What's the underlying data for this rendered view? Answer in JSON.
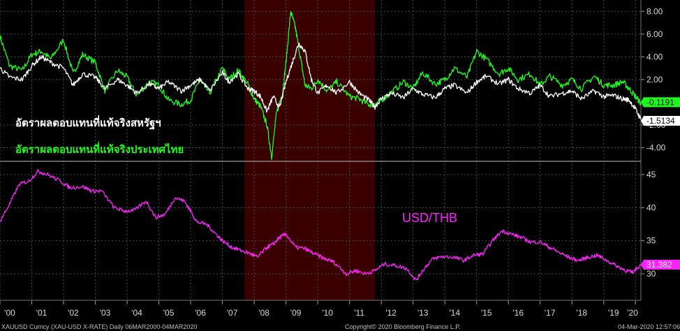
{
  "chart_data": [
    {
      "type": "line",
      "panel": "real-yields",
      "ylim": [
        -5.2,
        9.0
      ],
      "y_ticks": [
        "8.00",
        "6.00",
        "4.00",
        "2.00",
        "-2.00",
        "-4.00"
      ],
      "y_tick_values": [
        8,
        6,
        4,
        2,
        -2,
        -4
      ],
      "annotations": [
        "อัตราผลตอบแทนที่แท้จริงสหรัฐฯ",
        "อัตราผลตอบแทนที่แท้จริงประเทศไทย"
      ],
      "series": [
        {
          "key": "us",
          "color": "#ffffff",
          "last_label": "-1.5134",
          "x": [
            2000.0,
            2000.3,
            2000.7,
            2001.0,
            2001.3,
            2001.6,
            2002.0,
            2002.3,
            2002.6,
            2003.0,
            2003.3,
            2003.7,
            2004.0,
            2004.3,
            2004.7,
            2005.0,
            2005.3,
            2005.7,
            2006.0,
            2006.3,
            2006.6,
            2007.0,
            2007.2,
            2007.5,
            2007.8,
            2008.0,
            2008.2,
            2008.4,
            2008.6,
            2008.8,
            2009.0,
            2009.2,
            2009.4,
            2009.6,
            2009.8,
            2010.0,
            2010.3,
            2010.6,
            2011.0,
            2011.3,
            2011.6,
            2011.8,
            2012.0,
            2012.3,
            2012.7,
            2013.0,
            2013.3,
            2013.7,
            2014.0,
            2014.3,
            2014.7,
            2015.0,
            2015.3,
            2015.7,
            2016.0,
            2016.3,
            2016.7,
            2017.0,
            2017.3,
            2017.7,
            2018.0,
            2018.3,
            2018.7,
            2019.0,
            2019.3,
            2019.6,
            2019.8,
            2020.0,
            2020.17
          ],
          "y": [
            3.0,
            2.2,
            2.0,
            3.2,
            4.0,
            3.5,
            3.0,
            1.5,
            2.5,
            2.2,
            1.2,
            2.0,
            1.5,
            0.8,
            1.6,
            1.2,
            1.8,
            1.0,
            1.5,
            2.0,
            1.0,
            2.6,
            1.8,
            2.5,
            1.2,
            1.0,
            0.5,
            -0.8,
            0.5,
            -0.5,
            1.8,
            3.5,
            5.2,
            4.5,
            2.0,
            0.8,
            1.5,
            0.8,
            1.8,
            0.8,
            0.2,
            -0.4,
            0.3,
            0.8,
            0.4,
            1.2,
            0.7,
            0.4,
            1.2,
            1.5,
            0.8,
            1.8,
            2.3,
            1.6,
            2.0,
            1.2,
            0.8,
            1.5,
            0.5,
            0.8,
            1.0,
            0.3,
            1.0,
            0.5,
            0.6,
            0.3,
            0.2,
            -0.6,
            -1.51
          ]
        },
        {
          "key": "thai",
          "color": "#1aff1a",
          "last_label": "-0.1191",
          "x": [
            2000.0,
            2000.3,
            2000.7,
            2001.0,
            2001.3,
            2001.6,
            2002.0,
            2002.3,
            2002.6,
            2003.0,
            2003.3,
            2003.7,
            2004.0,
            2004.3,
            2004.7,
            2005.0,
            2005.3,
            2005.7,
            2006.0,
            2006.3,
            2006.6,
            2007.0,
            2007.2,
            2007.5,
            2007.8,
            2008.0,
            2008.2,
            2008.4,
            2008.55,
            2008.7,
            2008.9,
            2009.0,
            2009.15,
            2009.3,
            2009.45,
            2009.6,
            2009.8,
            2010.0,
            2010.3,
            2010.6,
            2011.0,
            2011.3,
            2011.6,
            2011.8,
            2012.0,
            2012.3,
            2012.7,
            2013.0,
            2013.3,
            2013.7,
            2014.0,
            2014.3,
            2014.7,
            2015.0,
            2015.3,
            2015.7,
            2016.0,
            2016.3,
            2016.7,
            2017.0,
            2017.3,
            2017.7,
            2018.0,
            2018.3,
            2018.7,
            2019.0,
            2019.3,
            2019.6,
            2019.8,
            2020.0,
            2020.17
          ],
          "y": [
            5.8,
            3.2,
            2.8,
            4.2,
            4.5,
            3.8,
            5.5,
            2.5,
            4.2,
            3.5,
            1.0,
            2.8,
            2.2,
            0.6,
            1.8,
            1.5,
            0.2,
            -0.2,
            0.2,
            2.0,
            0.8,
            3.0,
            2.0,
            2.8,
            1.6,
            0.3,
            -0.4,
            -2.0,
            -4.8,
            -1.0,
            1.0,
            3.5,
            8.0,
            6.5,
            4.0,
            1.5,
            1.2,
            2.0,
            1.0,
            1.8,
            0.5,
            0.3,
            -0.2,
            -0.2,
            0.2,
            0.8,
            1.8,
            1.2,
            2.6,
            1.6,
            2.0,
            3.0,
            2.2,
            4.5,
            3.8,
            2.5,
            3.0,
            2.0,
            2.5,
            1.5,
            2.3,
            1.5,
            2.0,
            1.2,
            2.3,
            1.5,
            1.5,
            1.8,
            1.2,
            0.5,
            -0.12
          ]
        }
      ]
    },
    {
      "type": "line",
      "panel": "usd-thb",
      "ylim": [
        26.0,
        47.0
      ],
      "y_ticks": [
        "45",
        "40",
        "35",
        "30"
      ],
      "y_tick_values": [
        45,
        40,
        35,
        30
      ],
      "series": [
        {
          "name": "USD/THB",
          "color": "#ff22ff",
          "last_label": "31.382",
          "x": [
            2000.0,
            2000.3,
            2000.6,
            2000.9,
            2001.2,
            2001.5,
            2001.9,
            2002.2,
            2002.6,
            2002.9,
            2003.2,
            2003.6,
            2003.9,
            2004.2,
            2004.6,
            2004.9,
            2005.2,
            2005.5,
            2005.8,
            2006.0,
            2006.2,
            2006.5,
            2006.8,
            2007.0,
            2007.3,
            2007.6,
            2007.9,
            2008.1,
            2008.4,
            2008.6,
            2008.8,
            2009.0,
            2009.3,
            2009.6,
            2009.9,
            2010.2,
            2010.5,
            2010.9,
            2011.2,
            2011.5,
            2011.8,
            2012.1,
            2012.5,
            2012.8,
            2013.1,
            2013.3,
            2013.6,
            2013.9,
            2014.3,
            2014.6,
            2014.9,
            2015.2,
            2015.5,
            2015.8,
            2016.1,
            2016.4,
            2016.7,
            2017.0,
            2017.3,
            2017.6,
            2017.9,
            2018.2,
            2018.5,
            2018.8,
            2019.1,
            2019.4,
            2019.7,
            2019.9,
            2020.17
          ],
          "y": [
            38.0,
            40.5,
            43.5,
            44.0,
            45.5,
            45.0,
            44.0,
            43.0,
            43.2,
            42.5,
            42.5,
            40.0,
            39.5,
            39.5,
            41.0,
            38.5,
            39.0,
            41.5,
            41.0,
            39.5,
            37.8,
            37.5,
            36.0,
            35.0,
            34.0,
            33.5,
            33.0,
            32.5,
            34.0,
            34.5,
            35.5,
            36.0,
            34.0,
            33.8,
            33.0,
            32.3,
            31.8,
            30.0,
            30.5,
            30.0,
            30.5,
            31.5,
            31.2,
            30.8,
            29.0,
            30.5,
            32.2,
            32.6,
            32.5,
            32.0,
            32.8,
            33.0,
            35.0,
            36.5,
            36.0,
            35.5,
            34.8,
            34.8,
            34.0,
            33.2,
            32.5,
            32.0,
            32.5,
            32.8,
            32.0,
            31.2,
            30.5,
            30.2,
            31.38
          ]
        }
      ]
    }
  ],
  "x_axis": {
    "labels": [
      "'00",
      "'01",
      "'02",
      "'03",
      "'04",
      "'05",
      "'06",
      "'07",
      "'08",
      "'09",
      "'10",
      "'11",
      "'12",
      "'13",
      "'14",
      "'15",
      "'16",
      "'17",
      "'18",
      "'19",
      "'20"
    ],
    "start_year": 2000,
    "end_year": 2020.17
  },
  "highlight": {
    "from": 2007.7,
    "to": 2011.8,
    "color": "#3a0000"
  },
  "footer": {
    "left": "XAUUSD Curncy (XAU-USD X-RATE)  Daily 06MAR2000-04MAR2020",
    "center": "Copyright© 2020 Bloomberg Finance L.P.",
    "right": "04-Mar-2020 12:57:06"
  }
}
